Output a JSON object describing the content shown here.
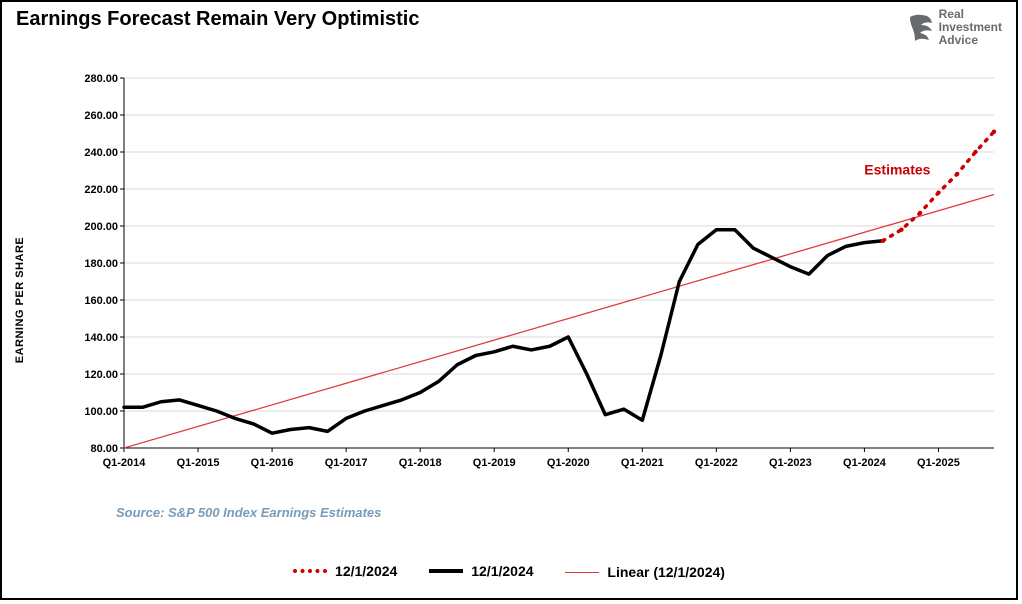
{
  "title": "Earnings Forecast Remain Very Optimistic",
  "logo": {
    "line1": "Real",
    "line2": "Investment",
    "line3": "Advice"
  },
  "chart": {
    "type": "line",
    "ylabel": "EARNING PER SHARE",
    "estimates_label": "Estimates",
    "source": "Source: S&P 500 Index Earnings Estimates",
    "background_color": "#ffffff",
    "border_color": "#000000",
    "grid_color": "#d9d9d9",
    "ylim": [
      80,
      280
    ],
    "ytick_step": 20,
    "yticks": [
      "80.00",
      "100.00",
      "120.00",
      "140.00",
      "160.00",
      "180.00",
      "200.00",
      "220.00",
      "240.00",
      "260.00",
      "280.00"
    ],
    "xticks": [
      "Q1-2014",
      "Q1-2015",
      "Q1-2016",
      "Q1-2017",
      "Q1-2018",
      "Q1-2019",
      "Q1-2020",
      "Q1-2021",
      "Q1-2022",
      "Q1-2023",
      "Q1-2024",
      "Q1-2025"
    ],
    "xlim": [
      0,
      47
    ],
    "series": {
      "actual": {
        "label": "12/1/2024",
        "color": "#000000",
        "line_width": 3.5,
        "dash": "none",
        "data": [
          [
            0,
            102
          ],
          [
            1,
            102
          ],
          [
            2,
            105
          ],
          [
            3,
            106
          ],
          [
            4,
            103
          ],
          [
            5,
            100
          ],
          [
            6,
            96
          ],
          [
            7,
            93
          ],
          [
            8,
            88
          ],
          [
            9,
            90
          ],
          [
            10,
            91
          ],
          [
            11,
            89
          ],
          [
            12,
            96
          ],
          [
            13,
            100
          ],
          [
            14,
            103
          ],
          [
            15,
            106
          ],
          [
            16,
            110
          ],
          [
            17,
            116
          ],
          [
            18,
            125
          ],
          [
            19,
            130
          ],
          [
            20,
            132
          ],
          [
            21,
            135
          ],
          [
            22,
            133
          ],
          [
            23,
            135
          ],
          [
            24,
            140
          ],
          [
            25,
            120
          ],
          [
            26,
            98
          ],
          [
            27,
            101
          ],
          [
            28,
            95
          ],
          [
            29,
            130
          ],
          [
            30,
            170
          ],
          [
            31,
            190
          ],
          [
            32,
            198
          ],
          [
            33,
            198
          ],
          [
            34,
            188
          ],
          [
            35,
            183
          ],
          [
            36,
            178
          ],
          [
            37,
            174
          ],
          [
            38,
            184
          ],
          [
            39,
            189
          ],
          [
            40,
            191
          ],
          [
            41,
            192
          ]
        ]
      },
      "forecast": {
        "label": "12/1/2024",
        "color": "#cc0000",
        "line_width": 3.5,
        "dash": "dotted",
        "marker": "circle",
        "data": [
          [
            41,
            192
          ],
          [
            42,
            198
          ],
          [
            43,
            207
          ],
          [
            44,
            218
          ],
          [
            45,
            228
          ],
          [
            46,
            240
          ],
          [
            47,
            251
          ]
        ]
      },
      "trend": {
        "label": "Linear (12/1/2024)",
        "color": "#e03a3a",
        "line_width": 1.3,
        "dash": "none",
        "data": [
          [
            0,
            80
          ],
          [
            47,
            217
          ]
        ]
      }
    },
    "tick_fontsize": 11,
    "tick_fontweight": 700,
    "title_fontsize": 20
  },
  "legend": {
    "items": [
      {
        "label": "12/1/2024",
        "style": "dotted"
      },
      {
        "label": "12/1/2024",
        "style": "solid"
      },
      {
        "label": "Linear (12/1/2024)",
        "style": "thin"
      }
    ]
  }
}
